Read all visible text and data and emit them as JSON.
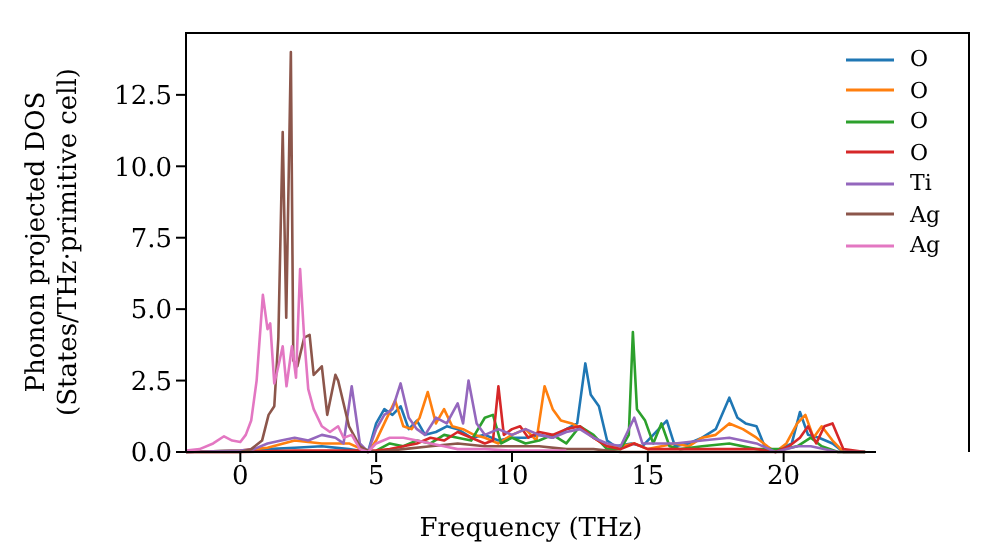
{
  "chart_data": {
    "type": "line",
    "xlabel": "Frequency (THz)",
    "ylabel": "Phonon projected DOS\n(States/THz·primitive cell)",
    "xlim": [
      -2,
      23.4
    ],
    "xticks": [
      0,
      5,
      10,
      15,
      20
    ],
    "ylim": [
      0,
      14.7
    ],
    "yticks": [
      {
        "value": 0,
        "label": "0.0"
      },
      2.5,
      {
        "value": 5,
        "label": "5.0"
      },
      7.5,
      {
        "value": 10,
        "label": "10.0"
      },
      12.5
    ],
    "grid": false,
    "legend": "top right",
    "marker": "none",
    "line_style": "solid",
    "series": [
      {
        "name": "O",
        "color": "#1f77b4",
        "x": [
          -2,
          0,
          1,
          2,
          3,
          4,
          4.7,
          5,
          5.3,
          5.6,
          5.9,
          6.2,
          6.5,
          6.8,
          7.2,
          7.6,
          8,
          8.5,
          9,
          9.5,
          10,
          10.5,
          11,
          11.5,
          12,
          12.4,
          12.7,
          12.9,
          13.2,
          13.5,
          13.8,
          14.4,
          14.8,
          15.2,
          15.7,
          16,
          16.5,
          17,
          17.5,
          18,
          18.3,
          18.6,
          19,
          19.3,
          19.7,
          20.3,
          20.6,
          20.9,
          21.3,
          21.8,
          22.2,
          23
        ],
        "values": [
          0,
          0.05,
          0.1,
          0.15,
          0.2,
          0.1,
          0,
          1.0,
          1.5,
          1.3,
          1.6,
          0.8,
          1.1,
          0.6,
          0.7,
          0.9,
          0.8,
          0.5,
          0.6,
          0.4,
          0.5,
          0.5,
          0.6,
          0.5,
          0.8,
          1.0,
          3.1,
          2.0,
          1.6,
          0.4,
          0.2,
          0.3,
          0.2,
          0.6,
          1.1,
          0.2,
          0.3,
          0.5,
          0.8,
          1.9,
          1.2,
          1.0,
          0.9,
          0.2,
          0,
          0.3,
          1.4,
          0.6,
          0.5,
          0.3,
          0,
          0
        ]
      },
      {
        "name": "O",
        "color": "#ff7f0e",
        "x": [
          -2,
          0,
          1,
          2,
          3,
          4,
          4.7,
          5,
          5.3,
          5.7,
          6,
          6.3,
          6.6,
          6.9,
          7.2,
          7.5,
          7.8,
          8.2,
          8.6,
          9,
          9.5,
          10,
          10.5,
          10.9,
          11.2,
          11.5,
          11.8,
          12.2,
          12.6,
          13,
          13.5,
          14,
          14.5,
          15,
          15.5,
          16,
          16.5,
          17,
          17.5,
          18,
          18.5,
          19,
          19.4,
          19.7,
          20.1,
          20.5,
          20.8,
          21.1,
          21.4,
          21.8,
          22.2,
          23
        ],
        "values": [
          0,
          0.05,
          0.15,
          0.4,
          0.3,
          0.3,
          0,
          0.4,
          1.0,
          1.8,
          0.9,
          0.8,
          1.2,
          2.1,
          1.0,
          1.5,
          0.9,
          0.8,
          0.6,
          0.5,
          0.3,
          0.6,
          0.8,
          0.4,
          2.3,
          1.5,
          1.1,
          1.0,
          0.8,
          0.5,
          0.2,
          0.2,
          0.3,
          0.1,
          0.2,
          0.3,
          0.2,
          0.5,
          0.6,
          1.0,
          0.8,
          0.5,
          0.2,
          0,
          0.3,
          1.0,
          1.3,
          0.5,
          0.9,
          0.4,
          0,
          0
        ]
      },
      {
        "name": "O",
        "color": "#2ca02c",
        "x": [
          5,
          5.5,
          6,
          6.5,
          7,
          7.5,
          8,
          8.5,
          9,
          9.3,
          9.6,
          10,
          10.5,
          11,
          11.5,
          12,
          12.5,
          13,
          13.5,
          14,
          14.3,
          14.45,
          14.6,
          14.9,
          15.2,
          15.5,
          15.8,
          16.2,
          17,
          18,
          19,
          20,
          20.5,
          21,
          21.4,
          22,
          23
        ],
        "values": [
          0.05,
          0.3,
          0.2,
          0.4,
          0.3,
          0.6,
          0.5,
          0.4,
          1.2,
          1.3,
          0.3,
          0.5,
          0.3,
          0.4,
          0.6,
          0.3,
          0.9,
          0.6,
          0.1,
          0.1,
          0.6,
          4.2,
          1.5,
          1.1,
          0.3,
          1.0,
          0.2,
          0.1,
          0.2,
          0.3,
          0.1,
          0.1,
          0.2,
          0.5,
          0.2,
          0,
          0
        ]
      },
      {
        "name": "O",
        "color": "#d62728",
        "x": [
          -2,
          0,
          2,
          4,
          5,
          5.5,
          6,
          6.5,
          7,
          7.5,
          8,
          8.5,
          9,
          9.3,
          9.5,
          9.7,
          10,
          10.3,
          10.6,
          11,
          11.5,
          12,
          12.5,
          13,
          13.5,
          14,
          14.5,
          15,
          16,
          17,
          18,
          19,
          19.7,
          20.2,
          20.6,
          20.9,
          21.2,
          21.5,
          21.8,
          22.2,
          23
        ],
        "values": [
          0,
          0,
          0.05,
          0.05,
          0.05,
          0.1,
          0.2,
          0.3,
          0.5,
          0.4,
          0.7,
          0.5,
          0.3,
          0.4,
          2.3,
          0.6,
          0.8,
          0.9,
          0.5,
          0.7,
          0.6,
          0.8,
          0.9,
          0.5,
          0.2,
          0.1,
          0.3,
          0.1,
          0.1,
          0.1,
          0.1,
          0.1,
          0,
          0.2,
          0.5,
          0.9,
          0.3,
          0.9,
          1.0,
          0.1,
          0
        ]
      },
      {
        "name": "Ti",
        "color": "#9467bd",
        "x": [
          -2,
          0,
          0.5,
          1,
          1.5,
          2,
          2.5,
          3,
          3.5,
          3.8,
          4.1,
          4.4,
          4.7,
          5,
          5.3,
          5.6,
          5.9,
          6.2,
          6.5,
          6.8,
          7.2,
          7.6,
          8,
          8.2,
          8.4,
          8.7,
          9,
          9.5,
          10,
          10.5,
          11,
          11.5,
          12,
          12.5,
          13,
          13.5,
          14,
          14.5,
          14.8,
          15.5,
          16,
          17,
          18,
          19,
          19.7,
          20.5,
          21,
          22,
          23
        ],
        "values": [
          0,
          0.05,
          0.1,
          0.3,
          0.4,
          0.5,
          0.4,
          0.6,
          0.5,
          0.3,
          2.3,
          0.3,
          0,
          0.8,
          1.3,
          1.5,
          2.4,
          1.2,
          0.8,
          0.6,
          1.2,
          1.0,
          1.7,
          1.0,
          2.5,
          1.0,
          0.6,
          0.8,
          0.6,
          0.8,
          0.6,
          0.5,
          0.7,
          0.8,
          0.5,
          0.3,
          0.2,
          1.2,
          0.3,
          0.3,
          0.3,
          0.4,
          0.5,
          0.3,
          0,
          0.2,
          0.2,
          0,
          0
        ]
      },
      {
        "name": "Ag",
        "color": "#8c564b",
        "x": [
          -2,
          0,
          0.4,
          0.8,
          1.04,
          1.25,
          1.4,
          1.56,
          1.69,
          1.86,
          1.95,
          2.1,
          2.35,
          2.55,
          2.7,
          3.0,
          3.2,
          3.5,
          3.6,
          4.0,
          4.4,
          4.7,
          5,
          6,
          7,
          8,
          9,
          10,
          11,
          12,
          13,
          14,
          15,
          16,
          18,
          20,
          22,
          23
        ],
        "values": [
          0,
          0,
          0.1,
          0.4,
          1.3,
          1.6,
          4,
          11.2,
          4.7,
          14.0,
          3.2,
          3.0,
          4.0,
          4.1,
          2.7,
          3.0,
          1.3,
          2.7,
          2.5,
          0.9,
          0.2,
          0.05,
          0,
          0.1,
          0.2,
          0.3,
          0.2,
          0.2,
          0.2,
          0.1,
          0.1,
          0,
          0,
          0,
          0,
          0,
          0,
          0
        ]
      },
      {
        "name": "Ag",
        "color": "#e377c2",
        "x": [
          -2,
          -1.5,
          -1,
          -0.6,
          -0.3,
          0,
          0.2,
          0.4,
          0.6,
          0.83,
          1.0,
          1.1,
          1.25,
          1.4,
          1.56,
          1.7,
          1.9,
          2.05,
          2.2,
          2.35,
          2.5,
          2.7,
          3.0,
          3.3,
          3.6,
          3.8,
          4.1,
          4.4,
          4.7,
          5,
          5.5,
          6,
          6.5,
          7,
          7.5,
          8,
          9,
          10,
          11,
          12
        ],
        "values": [
          0.05,
          0.1,
          0.3,
          0.55,
          0.4,
          0.35,
          0.6,
          1.1,
          2.5,
          5.5,
          4.3,
          4.5,
          2.4,
          3.0,
          3.7,
          2.3,
          3.7,
          2.6,
          6.4,
          4.0,
          2.2,
          1.5,
          0.9,
          0.7,
          0.9,
          0.5,
          0.6,
          0.1,
          0,
          0.3,
          0.5,
          0.5,
          0.4,
          0.3,
          0.2,
          0.1,
          0.1,
          0.05,
          0.05,
          0.05
        ]
      }
    ]
  }
}
